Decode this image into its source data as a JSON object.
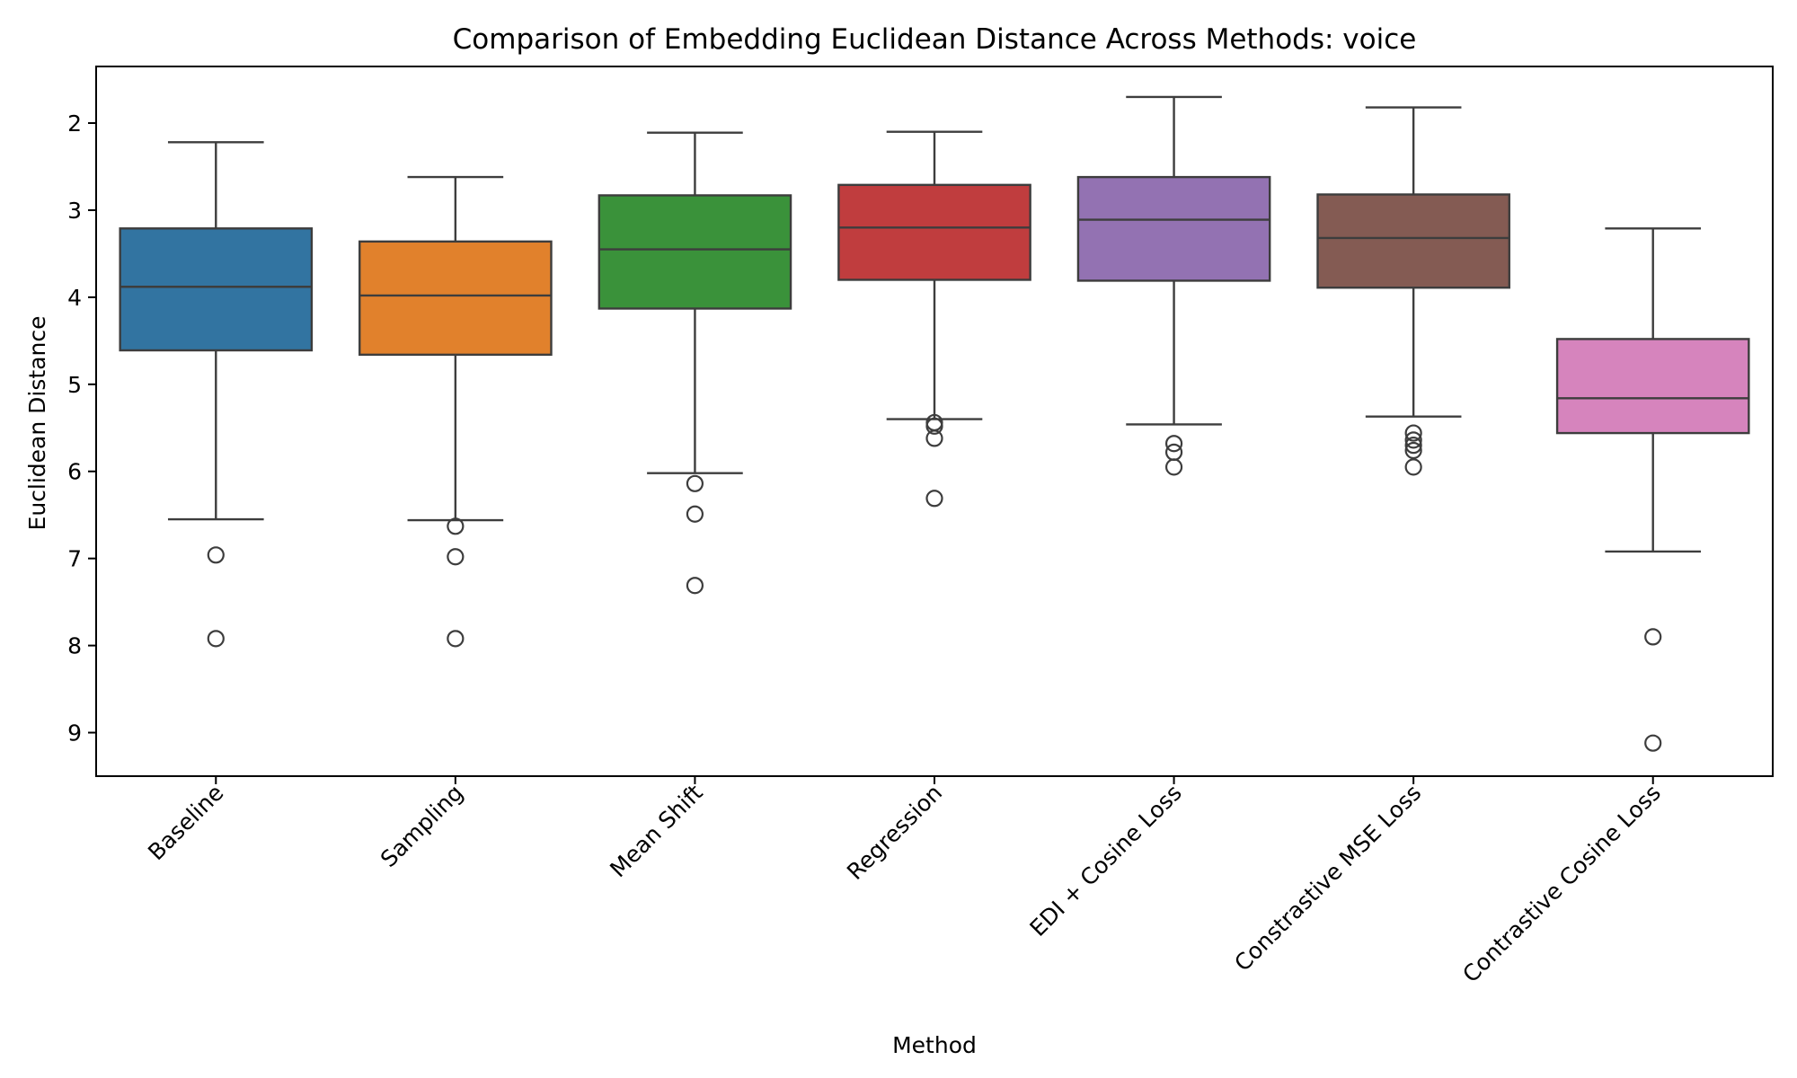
{
  "chart_data": {
    "type": "boxplot",
    "title": "Comparison of Embedding Euclidean Distance Across Methods: voice",
    "xlabel": "Method",
    "ylabel": "Euclidean Distance",
    "y_inverted": true,
    "ylim": [
      1.35,
      9.5
    ],
    "yticks": [
      2,
      3,
      4,
      5,
      6,
      7,
      8,
      9
    ],
    "grid": false,
    "categories": [
      "Baseline",
      "Sampling",
      "Mean Shift",
      "Regression",
      "EDI + Cosine Loss",
      "Constrastive MSE Loss",
      "Contrastive Cosine Loss"
    ],
    "boxes": [
      {
        "name": "Baseline",
        "color": "#3274a1",
        "whisker_low": 2.22,
        "q1": 3.21,
        "median": 3.88,
        "q3": 4.61,
        "whisker_high": 6.55,
        "outliers": [
          6.96,
          7.92
        ]
      },
      {
        "name": "Sampling",
        "color": "#e1812c",
        "whisker_low": 2.62,
        "q1": 3.36,
        "median": 3.98,
        "q3": 4.66,
        "whisker_high": 6.56,
        "outliers": [
          6.63,
          6.98,
          7.92
        ]
      },
      {
        "name": "Mean Shift",
        "color": "#3a923a",
        "whisker_low": 2.11,
        "q1": 2.83,
        "median": 3.45,
        "q3": 4.13,
        "whisker_high": 6.02,
        "outliers": [
          6.14,
          6.49,
          7.31
        ]
      },
      {
        "name": "Regression",
        "color": "#c03d3e",
        "whisker_low": 2.1,
        "q1": 2.71,
        "median": 3.2,
        "q3": 3.8,
        "whisker_high": 5.4,
        "outliers": [
          5.44,
          5.48,
          5.62,
          6.31
        ]
      },
      {
        "name": "EDI + Cosine Loss",
        "color": "#9372b2",
        "whisker_low": 1.7,
        "q1": 2.62,
        "median": 3.11,
        "q3": 3.81,
        "whisker_high": 5.46,
        "outliers": [
          5.68,
          5.78,
          5.95
        ]
      },
      {
        "name": "Constrastive MSE Loss",
        "color": "#845b53",
        "whisker_low": 1.82,
        "q1": 2.82,
        "median": 3.32,
        "q3": 3.89,
        "whisker_high": 5.37,
        "outliers": [
          5.56,
          5.64,
          5.7,
          5.76,
          5.95
        ]
      },
      {
        "name": "Contrastive Cosine Loss",
        "color": "#d684bd",
        "whisker_low": 3.21,
        "q1": 4.48,
        "median": 5.16,
        "q3": 5.56,
        "whisker_high": 6.92,
        "outliers": [
          7.9,
          9.12
        ]
      }
    ]
  }
}
